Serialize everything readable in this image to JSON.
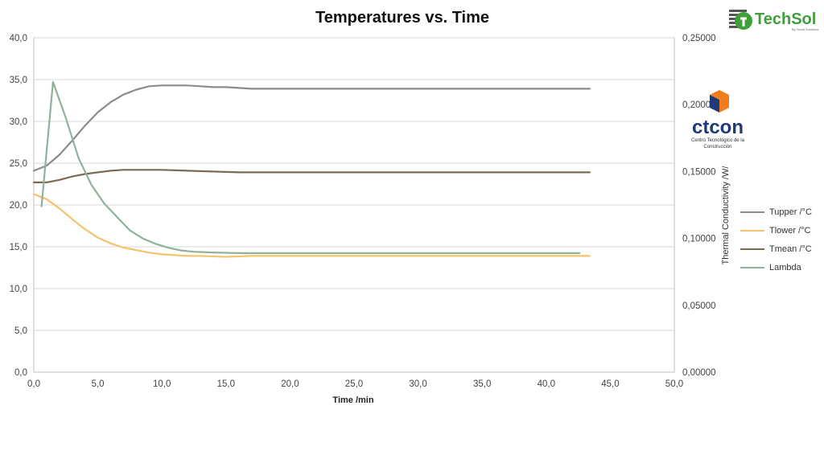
{
  "chart_data": {
    "type": "line",
    "title": "Temperatures vs. Time",
    "xlabel": "Time /min",
    "ylabel_right": "Thermal Conductivity /W/",
    "xlim": [
      0,
      50
    ],
    "ylim_left": [
      0,
      40
    ],
    "ylim_right": [
      0,
      0.25
    ],
    "x_ticks": [
      "0,0",
      "5,0",
      "10,0",
      "15,0",
      "20,0",
      "25,0",
      "30,0",
      "35,0",
      "40,0",
      "45,0",
      "50,0"
    ],
    "y_left_ticks": [
      "0,0",
      "5,0",
      "10,0",
      "15,0",
      "20,0",
      "25,0",
      "30,0",
      "35,0",
      "40,0"
    ],
    "y_right_ticks": [
      "0,00000",
      "0,05000",
      "0,10000",
      "0,15000",
      "0,20000",
      "0,25000"
    ],
    "grid": "horizontal",
    "legend_position": "right",
    "series": [
      {
        "name": "Tupper /°C",
        "color": "#8c8c8c",
        "axis": "left",
        "x": [
          0,
          1,
          2,
          3,
          4,
          5,
          6,
          7,
          8,
          9,
          10,
          11,
          12,
          13,
          14,
          15,
          16,
          17,
          18,
          20,
          25,
          30,
          35,
          40,
          43.4
        ],
        "y": [
          24.1,
          24.7,
          26.0,
          27.7,
          29.5,
          31.1,
          32.3,
          33.2,
          33.8,
          34.2,
          34.3,
          34.3,
          34.3,
          34.2,
          34.1,
          34.1,
          34.0,
          33.9,
          33.9,
          33.9,
          33.9,
          33.9,
          33.9,
          33.9,
          33.9
        ]
      },
      {
        "name": "Tlower /°C",
        "color": "#f2c46e",
        "axis": "left",
        "x": [
          0,
          1,
          2,
          3,
          4,
          5,
          6,
          7,
          8,
          9,
          10,
          11,
          12,
          13,
          15,
          17,
          20,
          25,
          30,
          35,
          40,
          43.4
        ],
        "y": [
          21.3,
          20.7,
          19.6,
          18.3,
          17.1,
          16.1,
          15.4,
          14.9,
          14.6,
          14.3,
          14.1,
          14.0,
          13.9,
          13.9,
          13.8,
          13.9,
          13.9,
          13.9,
          13.9,
          13.9,
          13.9,
          13.9
        ]
      },
      {
        "name": "Tmean /°C",
        "color": "#7d6a56",
        "axis": "left",
        "x": [
          0,
          1,
          2,
          3,
          4,
          5,
          6,
          7,
          8,
          10,
          12,
          14,
          16,
          20,
          25,
          30,
          35,
          40,
          43.4
        ],
        "y": [
          22.7,
          22.7,
          23.0,
          23.4,
          23.7,
          23.9,
          24.1,
          24.2,
          24.2,
          24.2,
          24.1,
          24.0,
          23.9,
          23.9,
          23.9,
          23.9,
          23.9,
          23.9,
          23.9
        ]
      },
      {
        "name": "Lambda",
        "color": "#8fb39a",
        "axis": "right",
        "x": [
          0.6,
          1.5,
          2.5,
          3.5,
          4.5,
          5.5,
          6.5,
          7.5,
          8.5,
          9.5,
          10.5,
          11.5,
          12.5,
          14,
          16,
          20,
          30,
          40,
          42.6
        ],
        "y": [
          0.124,
          0.217,
          0.19,
          0.16,
          0.14,
          0.126,
          0.116,
          0.106,
          0.1,
          0.096,
          0.093,
          0.091,
          0.09,
          0.0895,
          0.089,
          0.089,
          0.089,
          0.089,
          0.089
        ]
      }
    ]
  },
  "logos": {
    "techsol_name": "TechSol",
    "techsol_tagline": "By Great Solutions",
    "ctcon_name": "ctcon",
    "ctcon_sub1": "Centro Tecnológico de la",
    "ctcon_sub2": "Construcción",
    "techsol_color": "#3f9f3a",
    "ctcon_blue": "#1f3a77",
    "ctcon_orange": "#f07d1b"
  }
}
